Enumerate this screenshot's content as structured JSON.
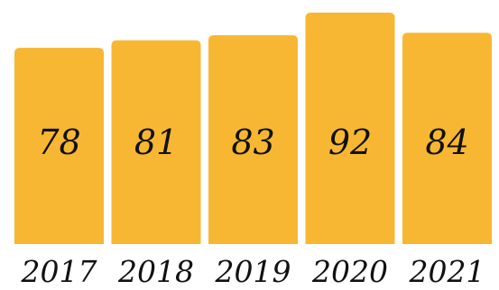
{
  "chart_data": {
    "type": "bar",
    "categories": [
      "2017",
      "2018",
      "2019",
      "2020",
      "2021"
    ],
    "values": [
      78,
      81,
      83,
      92,
      84
    ],
    "title": "",
    "xlabel": "",
    "ylabel": "",
    "ylim": [
      0,
      92
    ],
    "grid": false,
    "bar_color": "#F7B733",
    "value_labels_position": "center"
  }
}
